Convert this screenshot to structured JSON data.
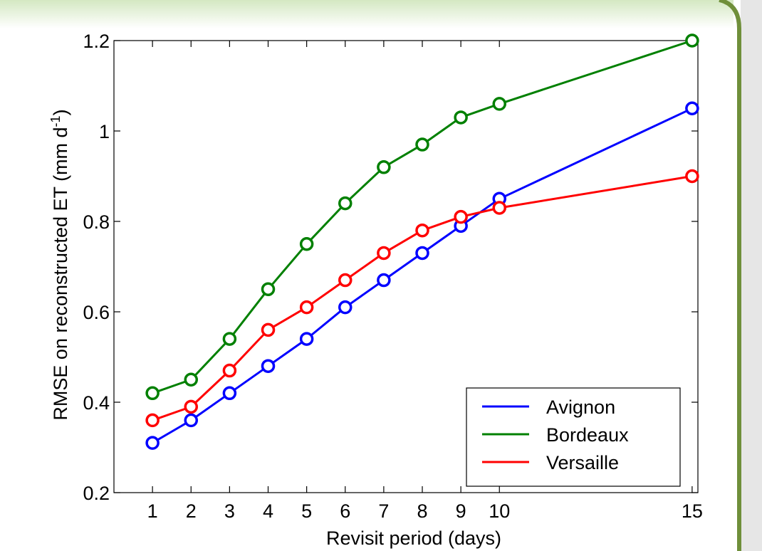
{
  "colors": {
    "frame_green": "#6f8f3a",
    "frame_light": "#e6f2dc",
    "sidebar_grey": "#e6e6e6"
  },
  "chart_data": {
    "type": "line",
    "title": "",
    "xlabel": "Revisit period (days)",
    "ylabel": "RMSE on reconstructed ET  (mm d",
    "ylabel_sup": "-1",
    "ylabel_close": ")",
    "xlim": [
      0,
      15.15
    ],
    "ylim": [
      0.2,
      1.2
    ],
    "xticks": [
      1,
      2,
      3,
      4,
      5,
      6,
      7,
      8,
      9,
      10,
      15
    ],
    "yticks": [
      {
        "value": 0.2,
        "label": "0.2"
      },
      {
        "value": 0.4,
        "label": "0.4"
      },
      {
        "value": 0.6,
        "label": "0.6"
      },
      {
        "value": 0.8,
        "label": "0.8"
      },
      {
        "value": 1.0,
        "label": "1"
      },
      {
        "value": 1.2,
        "label": "1.2"
      }
    ],
    "grid": false,
    "marker": "circle",
    "legend_position": "bottom-right",
    "x": [
      1,
      2,
      3,
      4,
      5,
      6,
      7,
      8,
      9,
      10,
      15
    ],
    "series": [
      {
        "name": "Avignon",
        "color": "#0000ff",
        "values": [
          0.31,
          0.36,
          0.42,
          0.48,
          0.54,
          0.61,
          0.67,
          0.73,
          0.79,
          0.85,
          1.05
        ]
      },
      {
        "name": "Bordeaux",
        "color": "#008000",
        "values": [
          0.42,
          0.45,
          0.54,
          0.65,
          0.75,
          0.84,
          0.92,
          0.97,
          1.03,
          1.06,
          1.2
        ]
      },
      {
        "name": "Versaille",
        "color": "#ff0000",
        "values": [
          0.36,
          0.39,
          0.47,
          0.56,
          0.61,
          0.67,
          0.73,
          0.78,
          0.81,
          0.83,
          0.9
        ]
      }
    ]
  }
}
